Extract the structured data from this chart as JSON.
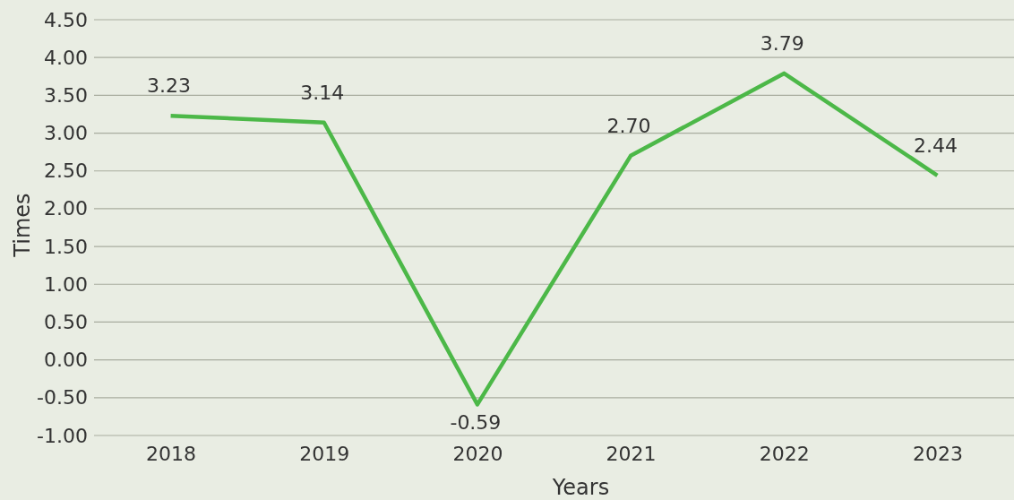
{
  "chart_data": {
    "type": "line",
    "xlabel": "Years",
    "ylabel": "Times",
    "categories": [
      "2018",
      "2019",
      "2020",
      "2021",
      "2022",
      "2023"
    ],
    "series": [
      {
        "color": "#4cb848",
        "values": [
          3.23,
          3.14,
          -0.59,
          2.7,
          3.79,
          2.44
        ],
        "value_labels": [
          "3.23",
          "3.14",
          "-0.59",
          "2.70",
          "3.79",
          "2.44"
        ]
      }
    ],
    "ylim": [
      -1,
      4.5
    ],
    "yticks": [
      {
        "value": -1,
        "label": "-1.00"
      },
      {
        "value": -0.5,
        "label": "-0.50"
      },
      {
        "value": 0,
        "label": "0.00"
      },
      {
        "value": 0.5,
        "label": "0.50"
      },
      {
        "value": 1,
        "label": "1.00"
      },
      {
        "value": 1.5,
        "label": "1.50"
      },
      {
        "value": 2,
        "label": "2.00"
      },
      {
        "value": 2.5,
        "label": "2.50"
      },
      {
        "value": 3,
        "label": "3.00"
      },
      {
        "value": 3.5,
        "label": "3.50"
      },
      {
        "value": 4,
        "label": "4.00"
      },
      {
        "value": 4.5,
        "label": "4.50"
      }
    ],
    "grid": "y",
    "marker": "none",
    "line_style": "solid"
  }
}
